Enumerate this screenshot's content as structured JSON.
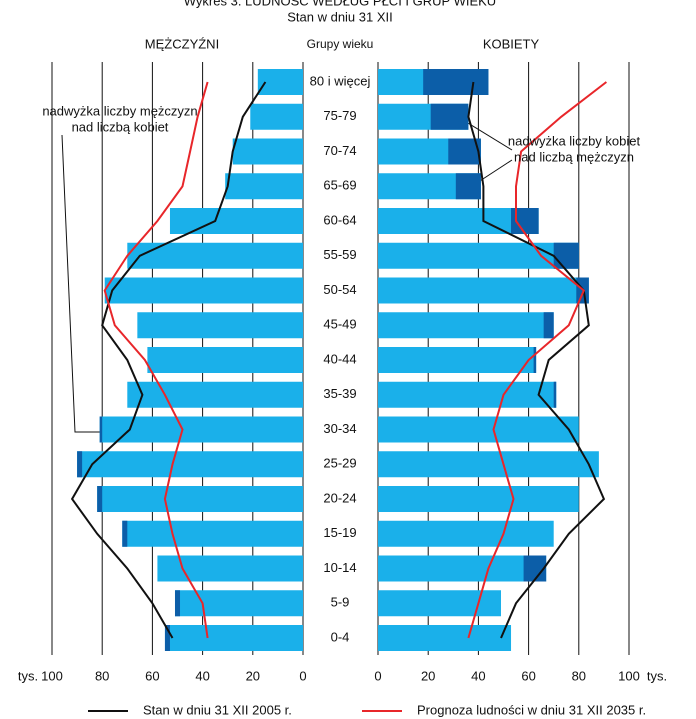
{
  "chart_data": {
    "type": "pyramid",
    "title": "Wykres 3. LUDNOŚĆ WEDŁUG PŁCI I GRUP WIEKU",
    "subtitle": "Stan w dniu 31 XII",
    "category_label": "Grupy wieku",
    "categories": [
      "80 i więcej",
      "75-79",
      "70-74",
      "65-69",
      "60-64",
      "55-59",
      "50-54",
      "45-49",
      "40-44",
      "35-39",
      "30-34",
      "25-29",
      "20-24",
      "15-19",
      "10-14",
      "5-9",
      "0-4"
    ],
    "series": [
      {
        "name": "MĘŻCZYŹNI",
        "color": "#1ab0ea",
        "values": [
          18,
          21,
          28,
          31,
          53,
          70,
          79,
          66,
          62,
          70,
          81,
          90,
          82,
          72,
          58,
          51,
          55
        ]
      },
      {
        "name": "KOBIETY",
        "color": "#1ab0ea",
        "values": [
          44,
          36,
          41,
          41,
          64,
          80,
          84,
          70,
          63,
          71,
          80,
          88,
          80,
          70,
          67,
          49,
          53
        ]
      }
    ],
    "surplus_color": "#0c5ea8",
    "lines": [
      {
        "name": "Stan w dniu 31 XII 2005 r.",
        "color": "#111111",
        "men": [
          15,
          24,
          28,
          30,
          35,
          65,
          76,
          80,
          70,
          64,
          69,
          84,
          92,
          82,
          70,
          60,
          52
        ],
        "women": [
          38,
          36,
          40,
          42,
          42,
          70,
          82,
          84,
          68,
          64,
          76,
          84,
          90,
          76,
          66,
          55,
          49
        ]
      },
      {
        "name": "Prognoza ludności w dniu 31 XII 2035 r.",
        "color": "#e8262a",
        "men": [
          38,
          42,
          45,
          48,
          58,
          70,
          79,
          75,
          63,
          55,
          48,
          52,
          55,
          52,
          48,
          40,
          38
        ],
        "women": [
          91,
          73,
          57,
          55,
          55,
          65,
          82,
          76,
          60,
          50,
          46,
          50,
          54,
          50,
          44,
          40,
          36
        ]
      }
    ],
    "x_unit": "tys.",
    "xlim": [
      0,
      100
    ],
    "xticks": [
      0,
      20,
      40,
      60,
      80,
      100
    ],
    "annotations": [
      [
        "nadwyżka liczby mężczyzn",
        "nad liczbą kobiet"
      ],
      [
        "nadwyżka liczby kobiet",
        "nad liczbą mężczyzn"
      ]
    ]
  }
}
